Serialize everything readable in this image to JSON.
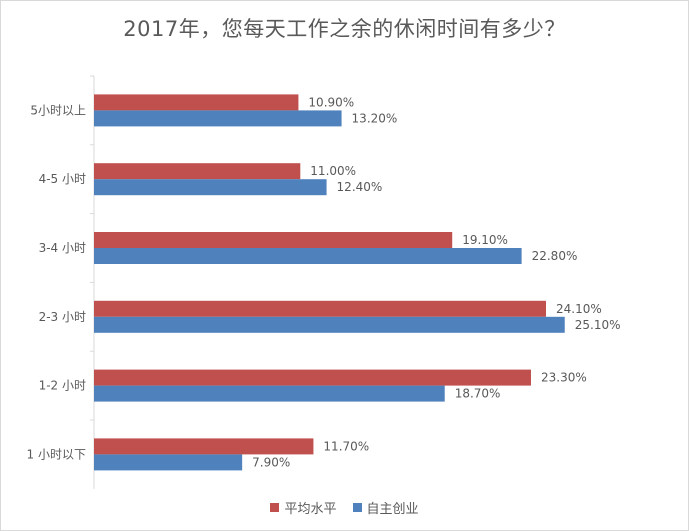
{
  "chart_data": {
    "type": "bar",
    "orientation": "horizontal",
    "title": "2017年，您每天工作之余的休闲时间有多少？",
    "categories": [
      "5小时以上",
      "4-5 小时",
      "3-4 小时",
      "2-3 小时",
      "1-2 小时",
      "1 小时以下"
    ],
    "series": [
      {
        "name": "平均水平",
        "color": "#c0504d",
        "values": [
          10.9,
          11.0,
          19.1,
          24.1,
          23.3,
          11.7
        ],
        "labels": [
          "10.90%",
          "11.00%",
          "19.10%",
          "24.10%",
          "23.30%",
          "11.70%"
        ]
      },
      {
        "name": "自主创业",
        "color": "#4f81bd",
        "values": [
          13.2,
          12.4,
          22.8,
          25.1,
          18.7,
          7.9
        ],
        "labels": [
          "13.20%",
          "12.40%",
          "22.80%",
          "25.10%",
          "18.70%",
          "7.90%"
        ]
      }
    ],
    "xlabel": "",
    "ylabel": "",
    "xlim": [
      0,
      26.5
    ],
    "grid": false,
    "legend_position": "bottom"
  }
}
